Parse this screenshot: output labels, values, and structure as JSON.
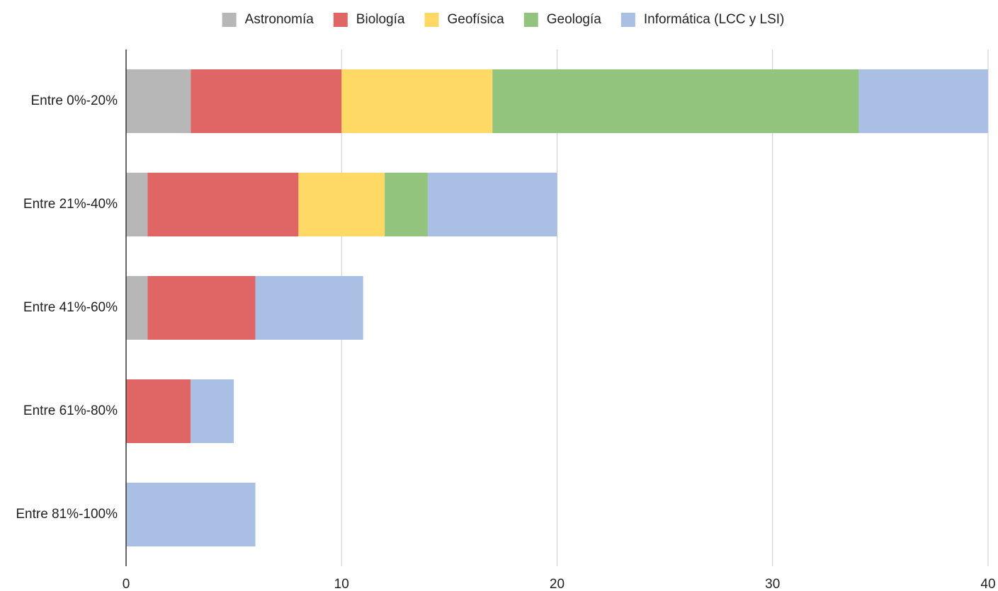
{
  "chart_data": {
    "type": "bar",
    "orientation": "horizontal",
    "stacked": true,
    "categories": [
      "Entre 0%-20%",
      "Entre 21%-40%",
      "Entre 41%-60%",
      "Entre 61%-80%",
      "Entre 81%-100%"
    ],
    "series": [
      {
        "name": "Astronomía",
        "color": "#b7b7b7",
        "values": [
          3,
          1,
          1,
          0,
          0
        ]
      },
      {
        "name": "Biología",
        "color": "#e06666",
        "values": [
          7,
          7,
          5,
          3,
          0
        ]
      },
      {
        "name": "Geofísica",
        "color": "#ffd966",
        "values": [
          7,
          4,
          0,
          0,
          0
        ]
      },
      {
        "name": "Geología",
        "color": "#93c47d",
        "values": [
          17,
          2,
          0,
          0,
          0
        ]
      },
      {
        "name": "Informática (LCC y LSI)",
        "color": "#a9bfe3",
        "values": [
          6,
          6,
          5,
          2,
          6
        ]
      }
    ],
    "xlim": [
      0,
      40
    ],
    "xticks": [
      0,
      10,
      20,
      30,
      40
    ],
    "grid": true,
    "legend": "top"
  }
}
